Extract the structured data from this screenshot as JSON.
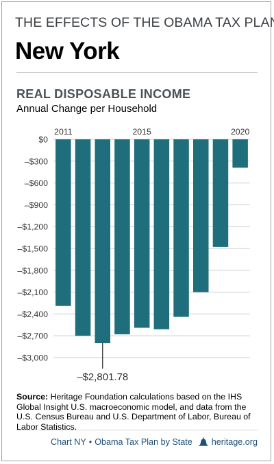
{
  "header": {
    "kicker": "THE EFFECTS OF THE OBAMA TAX PLAN",
    "state": "New York"
  },
  "chart_data": {
    "type": "bar",
    "title": "REAL DISPOSABLE INCOME",
    "subtitle": "Annual Change per Household",
    "categories": [
      "2011",
      "2012",
      "2013",
      "2014",
      "2015",
      "2016",
      "2017",
      "2018",
      "2019",
      "2020"
    ],
    "x_tick_labels": [
      "2011",
      "2015",
      "2020"
    ],
    "values": [
      -2290,
      -2700,
      -2801.78,
      -2680,
      -2590,
      -2610,
      -2440,
      -2100,
      -1480,
      -390
    ],
    "ylim": [
      -3000,
      0
    ],
    "y_tick_labels": [
      "$0",
      "–$300",
      "–$600",
      "–$900",
      "–$1,200",
      "–$1,500",
      "–$1,800",
      "–$2,100",
      "–$2,400",
      "–$2,700",
      "–$3,000"
    ],
    "annotation": "–$2,801.78",
    "bar_color": "#1f6e7c",
    "grid": true
  },
  "source": {
    "label": "Source:",
    "text": "Heritage Foundation calculations based on the IHS Global Insight U.S. macroeconomic model, and data from the U.S. Census Bureau and U.S. Department of Labor, Bureau of Labor Statistics."
  },
  "footer": {
    "chart_label": "Chart NY",
    "series": "Obama Tax Plan by State",
    "separator": "•",
    "site": "heritage.org"
  },
  "colors": {
    "accent": "#1b4e7a",
    "bar": "#1f6e7c"
  }
}
